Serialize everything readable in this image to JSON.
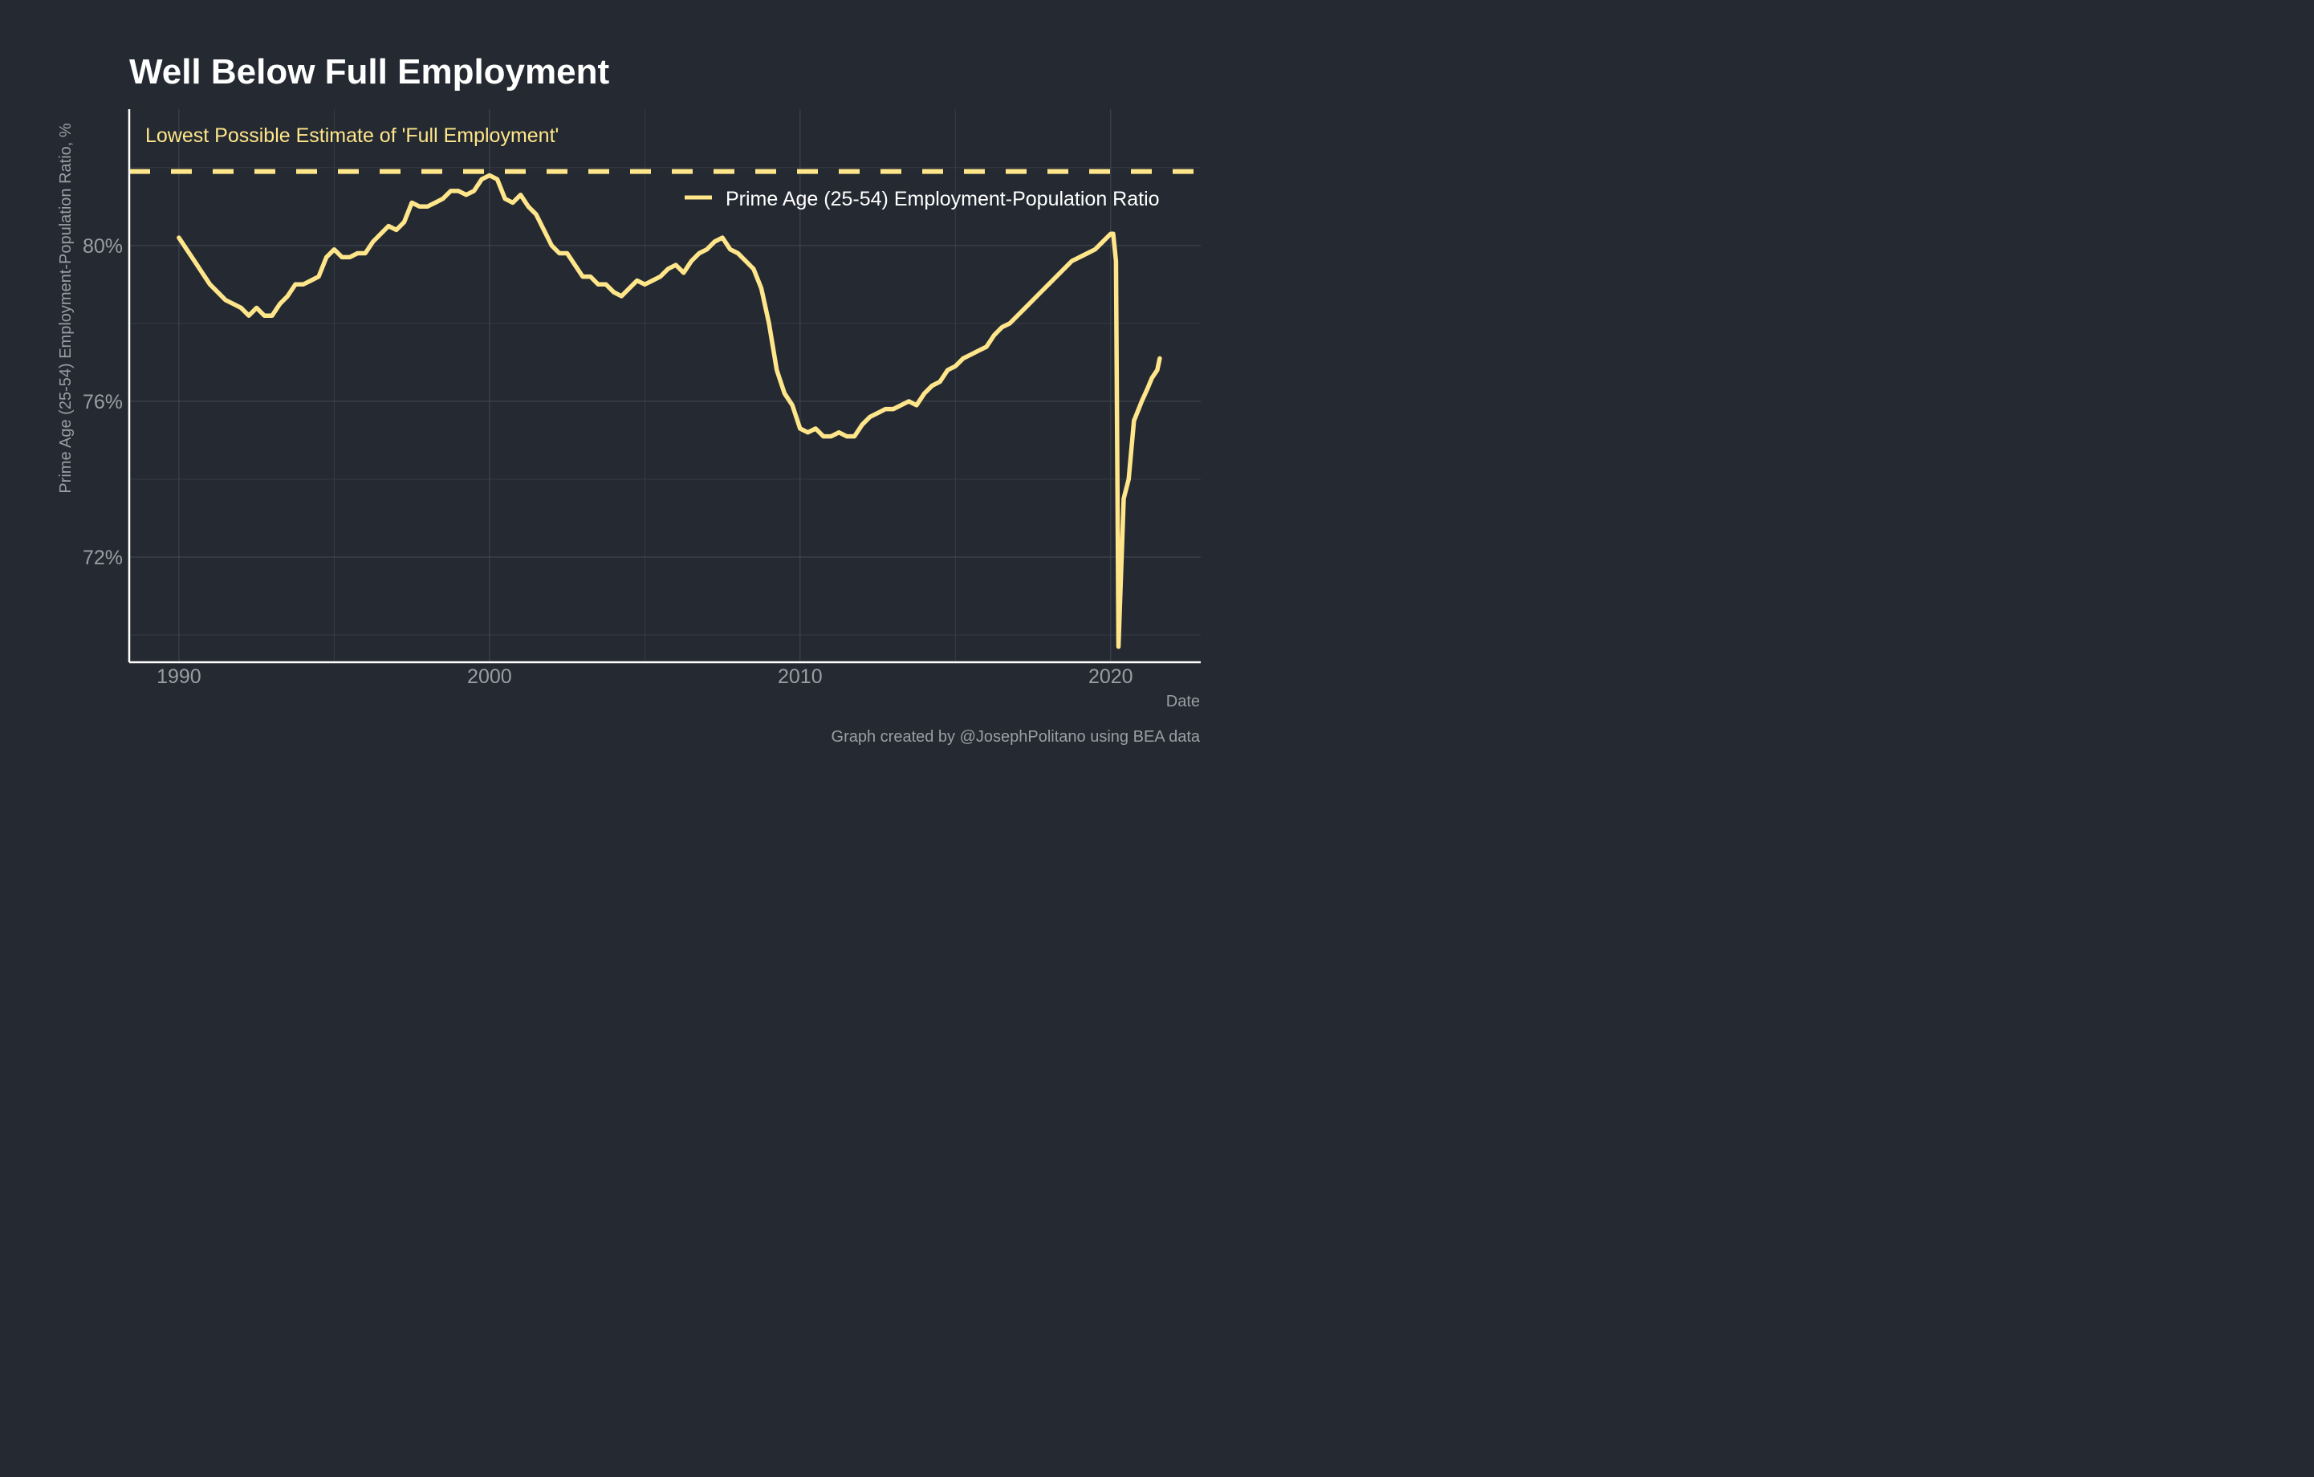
{
  "chart_data": {
    "type": "line",
    "title": "Well Below Full Employment",
    "xlabel": "Date",
    "ylabel": "Prime Age (25-54) Employment-Population Ratio, %",
    "caption": "Graph created by @JosephPolitano using BEA data",
    "annotation": "Lowest Possible Estimate of 'Full Employment'",
    "xlim": [
      1988.4,
      2022.9
    ],
    "ylim": [
      69.3,
      83.5
    ],
    "x_ticks": [
      1990,
      2000,
      2010,
      2020
    ],
    "x_tick_labels": [
      "1990",
      "2000",
      "2010",
      "2020"
    ],
    "y_ticks": [
      72,
      76,
      80
    ],
    "y_tick_labels": [
      "72%",
      "76%",
      "80%"
    ],
    "grid": true,
    "legend_position": "top-right",
    "colors": {
      "background": "#252a32",
      "series": "#ffe68a",
      "reference": "#ffe68a"
    },
    "reference_line": {
      "y": 81.9,
      "style": "dashed"
    },
    "series": [
      {
        "name": "Prime Age (25-54) Employment-Population Ratio",
        "points": [
          [
            1990.0,
            80.2
          ],
          [
            1990.25,
            79.9
          ],
          [
            1990.5,
            79.6
          ],
          [
            1990.75,
            79.3
          ],
          [
            1991.0,
            79.0
          ],
          [
            1991.25,
            78.8
          ],
          [
            1991.5,
            78.6
          ],
          [
            1991.75,
            78.5
          ],
          [
            1992.0,
            78.4
          ],
          [
            1992.25,
            78.2
          ],
          [
            1992.5,
            78.4
          ],
          [
            1992.75,
            78.2
          ],
          [
            1993.0,
            78.2
          ],
          [
            1993.25,
            78.5
          ],
          [
            1993.5,
            78.7
          ],
          [
            1993.75,
            79.0
          ],
          [
            1994.0,
            79.0
          ],
          [
            1994.25,
            79.1
          ],
          [
            1994.5,
            79.2
          ],
          [
            1994.75,
            79.7
          ],
          [
            1995.0,
            79.9
          ],
          [
            1995.25,
            79.7
          ],
          [
            1995.5,
            79.7
          ],
          [
            1995.75,
            79.8
          ],
          [
            1996.0,
            79.8
          ],
          [
            1996.25,
            80.1
          ],
          [
            1996.5,
            80.3
          ],
          [
            1996.75,
            80.5
          ],
          [
            1997.0,
            80.4
          ],
          [
            1997.25,
            80.6
          ],
          [
            1997.5,
            81.1
          ],
          [
            1997.75,
            81.0
          ],
          [
            1998.0,
            81.0
          ],
          [
            1998.25,
            81.1
          ],
          [
            1998.5,
            81.2
          ],
          [
            1998.75,
            81.4
          ],
          [
            1999.0,
            81.4
          ],
          [
            1999.25,
            81.3
          ],
          [
            1999.5,
            81.4
          ],
          [
            1999.75,
            81.7
          ],
          [
            2000.0,
            81.8
          ],
          [
            2000.25,
            81.7
          ],
          [
            2000.5,
            81.2
          ],
          [
            2000.75,
            81.1
          ],
          [
            2001.0,
            81.3
          ],
          [
            2001.25,
            81.0
          ],
          [
            2001.5,
            80.8
          ],
          [
            2001.75,
            80.4
          ],
          [
            2002.0,
            80.0
          ],
          [
            2002.25,
            79.8
          ],
          [
            2002.5,
            79.8
          ],
          [
            2002.75,
            79.5
          ],
          [
            2003.0,
            79.2
          ],
          [
            2003.25,
            79.2
          ],
          [
            2003.5,
            79.0
          ],
          [
            2003.75,
            79.0
          ],
          [
            2004.0,
            78.8
          ],
          [
            2004.25,
            78.7
          ],
          [
            2004.5,
            78.9
          ],
          [
            2004.75,
            79.1
          ],
          [
            2005.0,
            79.0
          ],
          [
            2005.25,
            79.1
          ],
          [
            2005.5,
            79.2
          ],
          [
            2005.75,
            79.4
          ],
          [
            2006.0,
            79.5
          ],
          [
            2006.25,
            79.3
          ],
          [
            2006.5,
            79.6
          ],
          [
            2006.75,
            79.8
          ],
          [
            2007.0,
            79.9
          ],
          [
            2007.25,
            80.1
          ],
          [
            2007.5,
            80.2
          ],
          [
            2007.75,
            79.9
          ],
          [
            2008.0,
            79.8
          ],
          [
            2008.25,
            79.6
          ],
          [
            2008.5,
            79.4
          ],
          [
            2008.75,
            78.9
          ],
          [
            2009.0,
            78.0
          ],
          [
            2009.25,
            76.8
          ],
          [
            2009.5,
            76.2
          ],
          [
            2009.75,
            75.9
          ],
          [
            2010.0,
            75.3
          ],
          [
            2010.25,
            75.2
          ],
          [
            2010.5,
            75.3
          ],
          [
            2010.75,
            75.1
          ],
          [
            2011.0,
            75.1
          ],
          [
            2011.25,
            75.2
          ],
          [
            2011.5,
            75.1
          ],
          [
            2011.75,
            75.1
          ],
          [
            2012.0,
            75.4
          ],
          [
            2012.25,
            75.6
          ],
          [
            2012.5,
            75.7
          ],
          [
            2012.75,
            75.8
          ],
          [
            2013.0,
            75.8
          ],
          [
            2013.25,
            75.9
          ],
          [
            2013.5,
            76.0
          ],
          [
            2013.75,
            75.9
          ],
          [
            2014.0,
            76.2
          ],
          [
            2014.25,
            76.4
          ],
          [
            2014.5,
            76.5
          ],
          [
            2014.75,
            76.8
          ],
          [
            2015.0,
            76.9
          ],
          [
            2015.25,
            77.1
          ],
          [
            2015.5,
            77.2
          ],
          [
            2015.75,
            77.3
          ],
          [
            2016.0,
            77.4
          ],
          [
            2016.25,
            77.7
          ],
          [
            2016.5,
            77.9
          ],
          [
            2016.75,
            78.0
          ],
          [
            2017.0,
            78.2
          ],
          [
            2017.25,
            78.4
          ],
          [
            2017.5,
            78.6
          ],
          [
            2017.75,
            78.8
          ],
          [
            2018.0,
            79.0
          ],
          [
            2018.25,
            79.2
          ],
          [
            2018.5,
            79.4
          ],
          [
            2018.75,
            79.6
          ],
          [
            2019.0,
            79.7
          ],
          [
            2019.25,
            79.8
          ],
          [
            2019.5,
            79.9
          ],
          [
            2019.75,
            80.1
          ],
          [
            2020.0,
            80.3
          ],
          [
            2020.08,
            80.3
          ],
          [
            2020.17,
            79.6
          ],
          [
            2020.25,
            69.7
          ],
          [
            2020.42,
            73.5
          ],
          [
            2020.58,
            74.0
          ],
          [
            2020.75,
            75.5
          ],
          [
            2021.0,
            76.0
          ],
          [
            2021.17,
            76.3
          ],
          [
            2021.33,
            76.6
          ],
          [
            2021.5,
            76.8
          ],
          [
            2021.58,
            77.1
          ]
        ]
      }
    ]
  }
}
